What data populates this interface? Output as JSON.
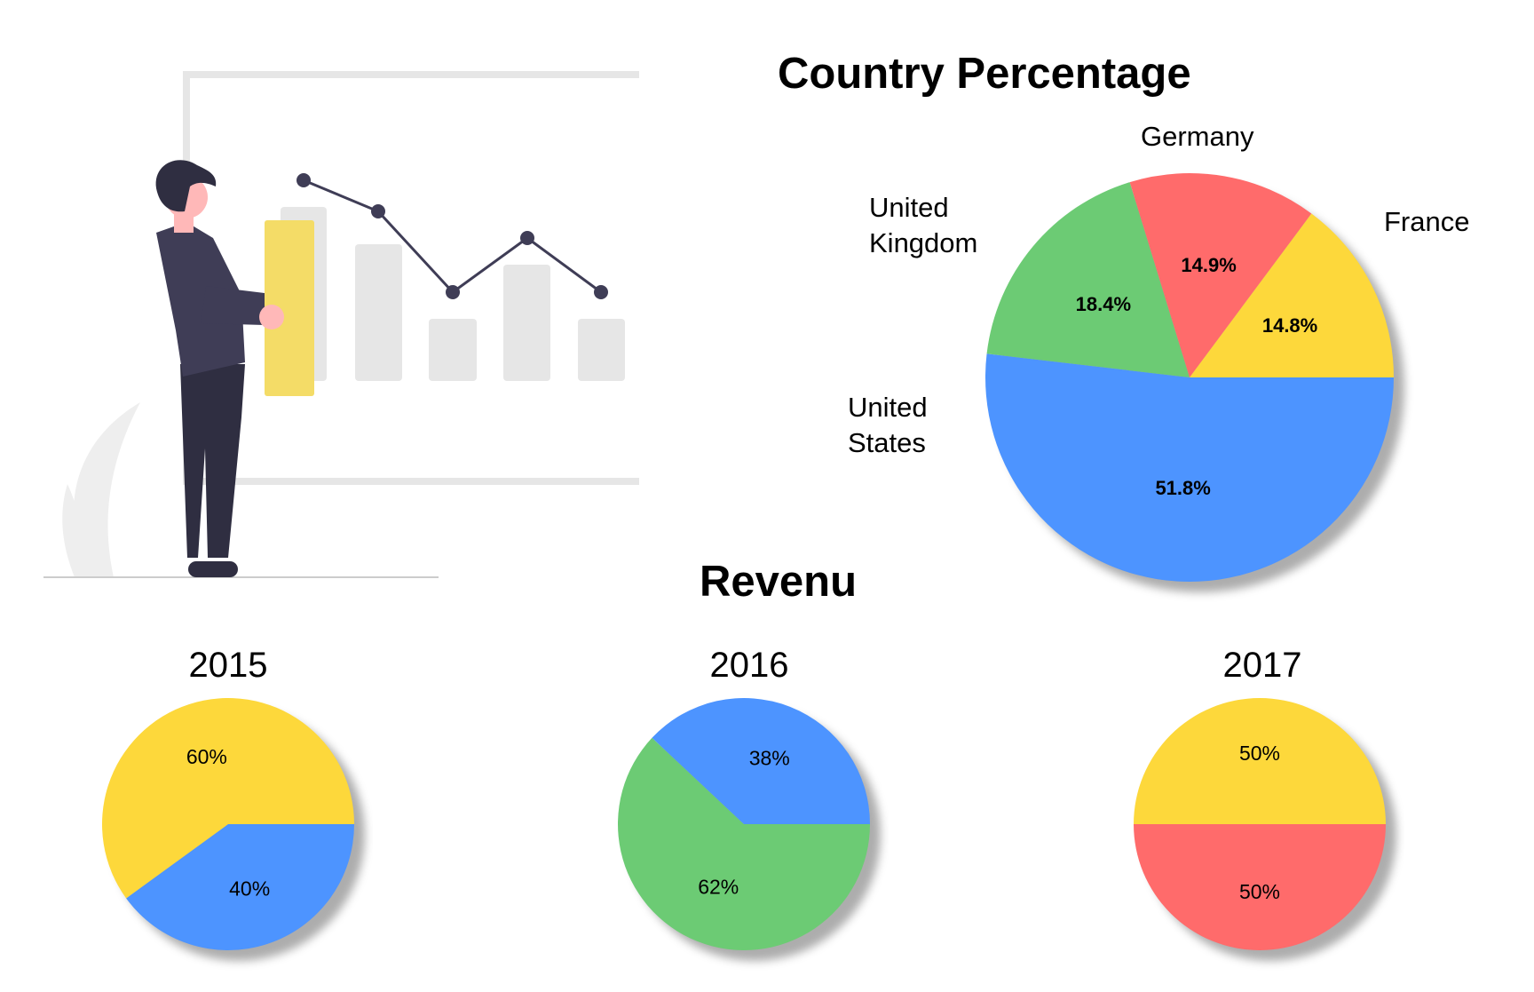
{
  "colors": {
    "blue": "#4D94FF",
    "green": "#6CCB74",
    "red": "#FF6B6B",
    "yellow": "#FDD83B",
    "illustration_gray": "#E6E6E6",
    "illustration_dark": "#3F3D56",
    "illustration_yellow": "#F4DC67",
    "skin": "#FFB8B8"
  },
  "chart_data": [
    {
      "type": "pie",
      "title": "Country Percentage",
      "categories": [
        "United States",
        "United Kingdom",
        "Germany",
        "France"
      ],
      "values": [
        51.8,
        18.4,
        14.9,
        14.8
      ],
      "data_labels": [
        "51.8%",
        "18.4%",
        "14.9%",
        "14.8%"
      ],
      "outside_labels": [
        "United\nStates",
        "United\nKingdom",
        "Germany",
        "France"
      ],
      "colors": [
        "#4D94FF",
        "#6CCB74",
        "#FF6B6B",
        "#FDD83B"
      ],
      "start_angle_deg": 0,
      "direction": "clockwise",
      "legend": "none"
    },
    {
      "type": "pie",
      "group_title": "Revenu",
      "title": "2015",
      "values": [
        40,
        60
      ],
      "data_labels": [
        "40%",
        "60%"
      ],
      "colors": [
        "#4D94FF",
        "#FDD83B"
      ],
      "start_angle_deg": 0,
      "direction": "clockwise",
      "legend": "none"
    },
    {
      "type": "pie",
      "group_title": "Revenu",
      "title": "2016",
      "values": [
        62,
        38
      ],
      "data_labels": [
        "62%",
        "38%"
      ],
      "colors": [
        "#6CCB74",
        "#4D94FF"
      ],
      "start_angle_deg": 0,
      "direction": "clockwise",
      "legend": "none"
    },
    {
      "type": "pie",
      "group_title": "Revenu",
      "title": "2017",
      "values": [
        50,
        50
      ],
      "data_labels": [
        "50%",
        "50%"
      ],
      "colors": [
        "#FF6B6B",
        "#FDD83B"
      ],
      "start_angle_deg": 0,
      "direction": "clockwise",
      "legend": "none"
    }
  ]
}
